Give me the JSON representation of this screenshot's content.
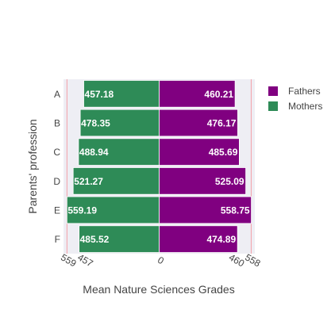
{
  "chart_data": {
    "type": "bar",
    "orientation": "horizontal",
    "barmode": "relative",
    "categories": [
      "A",
      "B",
      "C",
      "D",
      "E",
      "F"
    ],
    "series": [
      {
        "name": "Fathers",
        "color": "#800080",
        "values": [
          460.21,
          476.17,
          485.69,
          525.09,
          558.75,
          474.89
        ],
        "labels": [
          "460.21",
          "476.17",
          "485.69",
          "525.09",
          "558.75",
          "474.89"
        ]
      },
      {
        "name": "Mothers",
        "color": "#2e8b57",
        "values": [
          -457.18,
          -478.35,
          -488.94,
          -521.27,
          -559.19,
          -485.52
        ],
        "labels": [
          "457.18",
          "478.35",
          "488.94",
          "521.27",
          "559.19",
          "485.52"
        ]
      }
    ],
    "xlabel": "Mean Nature Sciences Grades",
    "ylabel": "Parents' profession",
    "xlim": [
      -580,
      580
    ],
    "xticks": [
      {
        "value": -559,
        "label": "559"
      },
      {
        "value": -457,
        "label": "457"
      },
      {
        "value": 0,
        "label": "0"
      },
      {
        "value": 460,
        "label": "460"
      },
      {
        "value": 558,
        "label": "558"
      }
    ],
    "reference_lines": [
      -559,
      558
    ],
    "plot_background": "#eeeef4",
    "grid": false,
    "legend_position": "top-right",
    "legend_order": [
      "Fathers",
      "Mothers"
    ]
  }
}
